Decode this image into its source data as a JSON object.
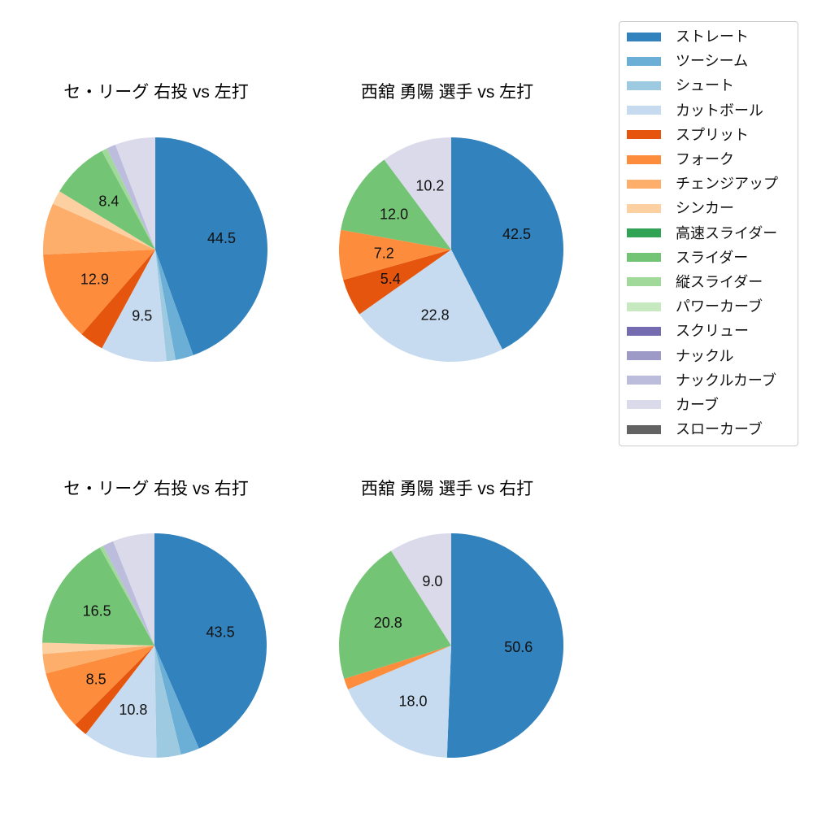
{
  "legend": {
    "items": [
      {
        "label": "ストレート",
        "color": "#3182bd"
      },
      {
        "label": "ツーシーム",
        "color": "#6baed6"
      },
      {
        "label": "シュート",
        "color": "#9ecae1"
      },
      {
        "label": "カットボール",
        "color": "#c6dbef"
      },
      {
        "label": "スプリット",
        "color": "#e6550d"
      },
      {
        "label": "フォーク",
        "color": "#fd8d3c"
      },
      {
        "label": "チェンジアップ",
        "color": "#fdae6b"
      },
      {
        "label": "シンカー",
        "color": "#fdd0a2"
      },
      {
        "label": "高速スライダー",
        "color": "#31a354"
      },
      {
        "label": "スライダー",
        "color": "#74c476"
      },
      {
        "label": "縦スライダー",
        "color": "#a1d99b"
      },
      {
        "label": "パワーカーブ",
        "color": "#c7e9c0"
      },
      {
        "label": "スクリュー",
        "color": "#756bb1"
      },
      {
        "label": "ナックル",
        "color": "#9e9ac8"
      },
      {
        "label": "ナックルカーブ",
        "color": "#bcbddc"
      },
      {
        "label": "カーブ",
        "color": "#dadaeb"
      },
      {
        "label": "スローカーブ",
        "color": "#636363"
      }
    ]
  },
  "chart_data": [
    {
      "type": "pie",
      "title": "セ・リーグ 右投 vs 左打",
      "start_angle": "12-o-clock",
      "direction": "clockwise",
      "label_distance_ratio": 0.6,
      "slices": [
        {
          "name": "ストレート",
          "value": 44.5,
          "labeled": true
        },
        {
          "name": "ツーシーム",
          "value": 2.6,
          "labeled": false,
          "approx": true
        },
        {
          "name": "シュート",
          "value": 1.3,
          "labeled": false,
          "approx": true
        },
        {
          "name": "カットボール",
          "value": 9.5,
          "labeled": true
        },
        {
          "name": "スプリット",
          "value": 3.5,
          "labeled": false,
          "approx": true
        },
        {
          "name": "フォーク",
          "value": 12.9,
          "labeled": true
        },
        {
          "name": "チェンジアップ",
          "value": 7.4,
          "labeled": false,
          "approx": true
        },
        {
          "name": "シンカー",
          "value": 2.0,
          "labeled": false,
          "approx": true
        },
        {
          "name": "スライダー",
          "value": 8.4,
          "labeled": true
        },
        {
          "name": "縦スライダー",
          "value": 0.8,
          "labeled": false,
          "approx": true
        },
        {
          "name": "ナックルカーブ",
          "value": 1.3,
          "labeled": false,
          "approx": true
        },
        {
          "name": "カーブ",
          "value": 5.8,
          "labeled": false,
          "approx": true
        }
      ]
    },
    {
      "type": "pie",
      "title": "西舘 勇陽 選手 vs 左打",
      "start_angle": "12-o-clock",
      "direction": "clockwise",
      "label_distance_ratio": 0.6,
      "slices": [
        {
          "name": "ストレート",
          "value": 42.5,
          "labeled": true
        },
        {
          "name": "カットボール",
          "value": 22.8,
          "labeled": true
        },
        {
          "name": "スプリット",
          "value": 5.4,
          "labeled": true
        },
        {
          "name": "フォーク",
          "value": 7.2,
          "labeled": true
        },
        {
          "name": "スライダー",
          "value": 12.0,
          "labeled": true
        },
        {
          "name": "カーブ",
          "value": 10.2,
          "labeled": true
        }
      ]
    },
    {
      "type": "pie",
      "title": "セ・リーグ 右投 vs 右打",
      "start_angle": "12-o-clock",
      "direction": "clockwise",
      "label_distance_ratio": 0.6,
      "slices": [
        {
          "name": "ストレート",
          "value": 43.5,
          "labeled": true
        },
        {
          "name": "ツーシーム",
          "value": 2.7,
          "labeled": false,
          "approx": true
        },
        {
          "name": "シュート",
          "value": 3.5,
          "labeled": false,
          "approx": true
        },
        {
          "name": "カットボール",
          "value": 10.8,
          "labeled": true
        },
        {
          "name": "スプリット",
          "value": 2.0,
          "labeled": false,
          "approx": true
        },
        {
          "name": "フォーク",
          "value": 8.5,
          "labeled": true
        },
        {
          "name": "チェンジアップ",
          "value": 2.8,
          "labeled": false,
          "approx": true
        },
        {
          "name": "シンカー",
          "value": 1.6,
          "labeled": false,
          "approx": true
        },
        {
          "name": "スライダー",
          "value": 16.5,
          "labeled": true
        },
        {
          "name": "縦スライダー",
          "value": 0.5,
          "labeled": false,
          "approx": true
        },
        {
          "name": "ナックルカーブ",
          "value": 1.6,
          "labeled": false,
          "approx": true
        },
        {
          "name": "カーブ",
          "value": 6.0,
          "labeled": false,
          "approx": true
        }
      ]
    },
    {
      "type": "pie",
      "title": "西舘 勇陽 選手 vs 右打",
      "start_angle": "12-o-clock",
      "direction": "clockwise",
      "label_distance_ratio": 0.6,
      "slices": [
        {
          "name": "ストレート",
          "value": 50.6,
          "labeled": true
        },
        {
          "name": "カットボール",
          "value": 18.0,
          "labeled": true
        },
        {
          "name": "フォーク",
          "value": 1.6,
          "labeled": false,
          "approx": true
        },
        {
          "name": "スライダー",
          "value": 20.8,
          "labeled": true
        },
        {
          "name": "カーブ",
          "value": 9.0,
          "labeled": true
        }
      ]
    }
  ]
}
